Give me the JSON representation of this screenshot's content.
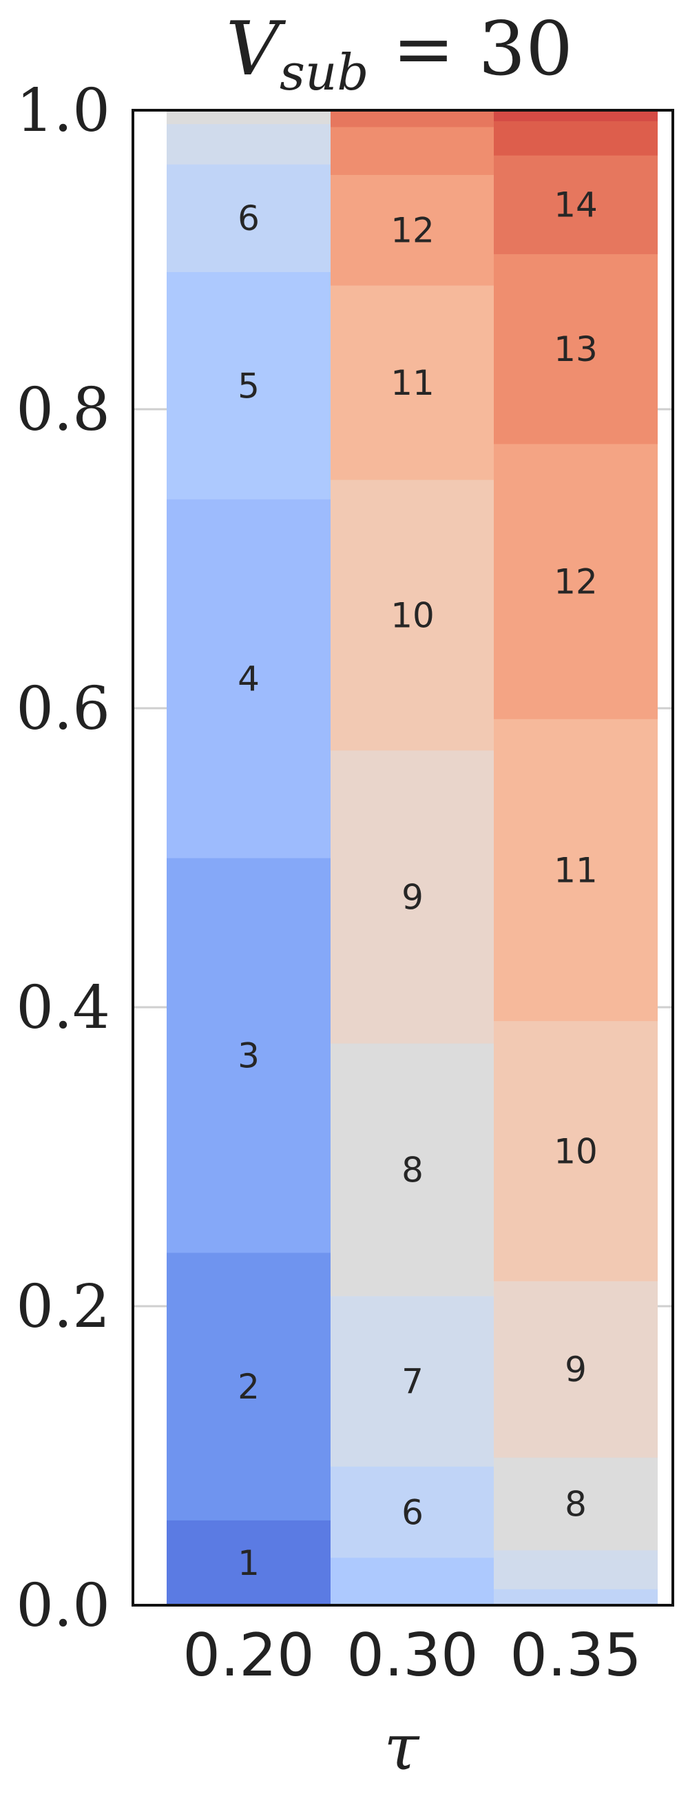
{
  "chart_data": {
    "type": "bar",
    "stacked": true,
    "title": {
      "main": "V",
      "subscript": "sub",
      "rest": " = 30"
    },
    "xlabel": "τ",
    "ylabel": "",
    "ylim": [
      0.0,
      1.0
    ],
    "yticks": [
      "0.0",
      "0.2",
      "0.4",
      "0.6",
      "0.8",
      "1.0"
    ],
    "ytick_values": [
      0.0,
      0.2,
      0.4,
      0.6,
      0.8,
      1.0
    ],
    "grid": "horizontal",
    "legend": "none",
    "colorscale": {
      "1": "#5b7be3",
      "2": "#6f94ef",
      "3": "#85a8f8",
      "4": "#9dbbfd",
      "5": "#adc9fe",
      "6": "#c0d4f7",
      "7": "#d0dbec",
      "8": "#dcdcdc",
      "9": "#e9d5cb",
      "10": "#f2c9b3",
      "11": "#f6b99b",
      "12": "#f4a484",
      "13": "#ef8e6f",
      "14": "#e6775e",
      "15": "#dd5e4c",
      "16": "#d44b45"
    },
    "categories": [
      "0.20",
      "0.30",
      "0.35"
    ],
    "bars": [
      {
        "category": "0.20",
        "segments": [
          {
            "k": 1,
            "value": 0.057,
            "label": "1"
          },
          {
            "k": 2,
            "value": 0.179,
            "label": "2"
          },
          {
            "k": 3,
            "value": 0.264,
            "label": "3"
          },
          {
            "k": 4,
            "value": 0.24,
            "label": "4"
          },
          {
            "k": 5,
            "value": 0.152,
            "label": "5"
          },
          {
            "k": 6,
            "value": 0.072,
            "label": "6"
          },
          {
            "k": 7,
            "value": 0.027,
            "label": ""
          },
          {
            "k": 8,
            "value": 0.009,
            "label": ""
          }
        ]
      },
      {
        "category": "0.30",
        "segments": [
          {
            "k": 5,
            "value": 0.032,
            "label": ""
          },
          {
            "k": 6,
            "value": 0.061,
            "label": "6"
          },
          {
            "k": 7,
            "value": 0.114,
            "label": "7"
          },
          {
            "k": 8,
            "value": 0.169,
            "label": "8"
          },
          {
            "k": 9,
            "value": 0.196,
            "label": "9"
          },
          {
            "k": 10,
            "value": 0.181,
            "label": "10"
          },
          {
            "k": 11,
            "value": 0.13,
            "label": "11"
          },
          {
            "k": 12,
            "value": 0.074,
            "label": "12"
          },
          {
            "k": 13,
            "value": 0.032,
            "label": ""
          },
          {
            "k": 14,
            "value": 0.011,
            "label": ""
          }
        ]
      },
      {
        "category": "0.35",
        "segments": [
          {
            "k": 6,
            "value": 0.011,
            "label": ""
          },
          {
            "k": 7,
            "value": 0.026,
            "label": ""
          },
          {
            "k": 8,
            "value": 0.062,
            "label": "8"
          },
          {
            "k": 9,
            "value": 0.118,
            "label": "9"
          },
          {
            "k": 10,
            "value": 0.174,
            "label": "10"
          },
          {
            "k": 11,
            "value": 0.202,
            "label": "11"
          },
          {
            "k": 12,
            "value": 0.184,
            "label": "12"
          },
          {
            "k": 13,
            "value": 0.127,
            "label": "13"
          },
          {
            "k": 14,
            "value": 0.066,
            "label": "14"
          },
          {
            "k": 15,
            "value": 0.023,
            "label": ""
          },
          {
            "k": 16,
            "value": 0.007,
            "label": ""
          }
        ]
      }
    ]
  }
}
